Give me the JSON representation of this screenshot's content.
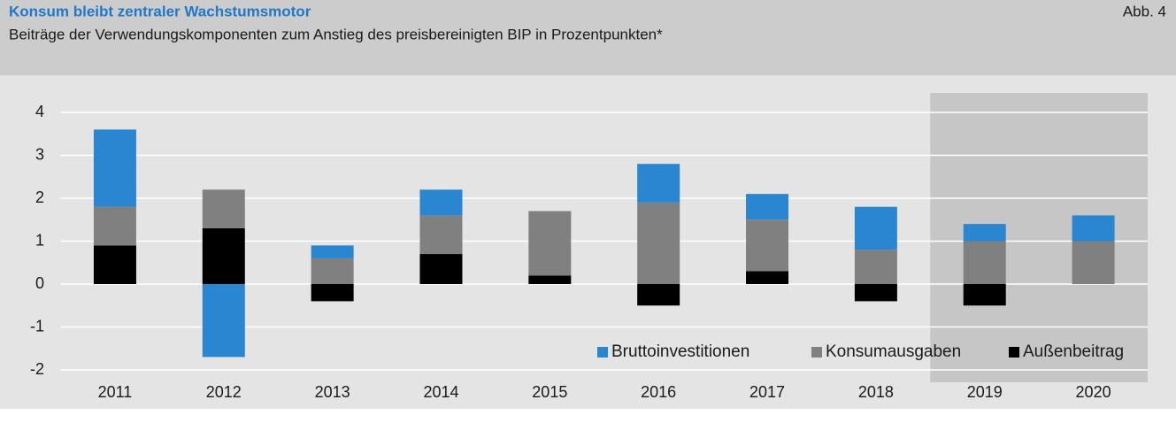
{
  "chart_data": {
    "type": "stacked-bar",
    "title": "Konsum bleibt zentraler Wachstumsmotor",
    "subtitle": "Beiträge der Verwendungskomponenten zum Anstieg des preisbereinigten BIP in Prozentpunkten*",
    "figure_label": "Abb. 4",
    "categories": [
      "2011",
      "2012",
      "2013",
      "2014",
      "2015",
      "2016",
      "2017",
      "2018",
      "2019",
      "2020"
    ],
    "series": [
      {
        "name": "Außenbeitrag",
        "color": "#000000",
        "values": [
          0.9,
          1.3,
          -0.4,
          0.7,
          0.2,
          -0.5,
          0.3,
          -0.4,
          -0.5,
          0
        ]
      },
      {
        "name": "Konsumausgaben",
        "color": "#808080",
        "values": [
          0.9,
          0.9,
          0.6,
          0.9,
          1.5,
          1.9,
          1.2,
          0.8,
          1.0,
          1.0
        ]
      },
      {
        "name": "Bruttoinvestitionen",
        "color": "#2a86d0",
        "values": [
          1.8,
          -1.7,
          0.3,
          0.6,
          0,
          0.9,
          0.6,
          1.0,
          0.4,
          0.6
        ]
      }
    ],
    "legend_order": [
      2,
      1,
      0
    ],
    "legend": "bottom-right",
    "ylim": [
      -2,
      4
    ],
    "yticks": [
      -2,
      -1,
      0,
      1,
      2,
      3,
      4
    ],
    "grid": true
  }
}
